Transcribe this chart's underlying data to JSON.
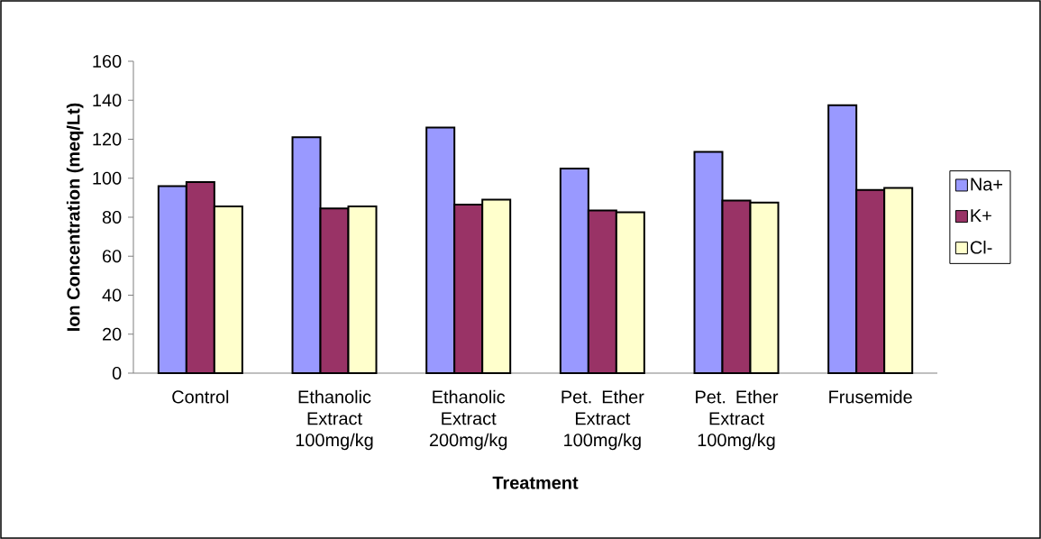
{
  "chart_data": {
    "type": "bar",
    "xlabel": "Treatment",
    "ylabel": "Ion Concentration (meq/Lt)",
    "categories": [
      "Control",
      "Ethanolic Extract 100mg/kg",
      "Ethanolic Extract 200mg/kg",
      "Pet. Ether Extract 100mg/kg",
      "Pet. Ether Extract 100mg/kg",
      "Frusemide"
    ],
    "series": [
      {
        "name": "Na+",
        "color": "#9999ff",
        "values": [
          96,
          121,
          126,
          105,
          113.5,
          137.5
        ]
      },
      {
        "name": "K+",
        "color": "#993366",
        "values": [
          98,
          84.5,
          86.5,
          83.5,
          88.5,
          94
        ]
      },
      {
        "name": "Cl-",
        "color": "#ffffcc",
        "values": [
          85.5,
          85.5,
          89,
          82.5,
          87.5,
          95
        ]
      }
    ],
    "ylim": [
      0,
      160
    ],
    "yticks": [
      0,
      20,
      40,
      60,
      80,
      100,
      120,
      140,
      160
    ],
    "grid": false,
    "legend": "right"
  }
}
